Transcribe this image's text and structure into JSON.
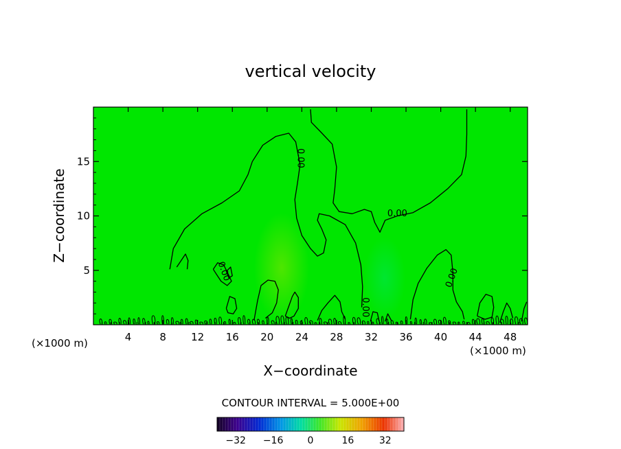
{
  "chart_data": {
    "type": "heatmap",
    "title": "vertical velocity",
    "xlabel": "X−coordinate",
    "ylabel": "Z−coordinate",
    "x_unit_left": "(×1000 m)",
    "x_unit_right": "(×1000 m)",
    "xlim": [
      0,
      50
    ],
    "ylim": [
      0,
      20
    ],
    "xticks": [
      4,
      8,
      12,
      16,
      20,
      24,
      28,
      32,
      36,
      40,
      44,
      48
    ],
    "yticks": [
      5,
      10,
      15
    ],
    "field_color": "#00e600",
    "contour_color": "#000000",
    "contour_labels": [
      {
        "text": "0.00",
        "x": 23.8,
        "y": 15.3,
        "rotate": 90
      },
      {
        "text": "0.00",
        "x": 35.0,
        "y": 10.2,
        "rotate": 0
      },
      {
        "text": "0.00",
        "x": 41.3,
        "y": 4.3,
        "rotate": -70
      },
      {
        "text": "0.00",
        "x": 15.0,
        "y": 4.9,
        "rotate": 70
      },
      {
        "text": "0.00",
        "x": 31.3,
        "y": 1.6,
        "rotate": 90
      }
    ],
    "contours": [
      [
        [
          8.8,
          5.1
        ],
        [
          9.2,
          7.0
        ],
        [
          10.5,
          8.8
        ],
        [
          12.5,
          10.2
        ],
        [
          14.8,
          11.2
        ],
        [
          16.8,
          12.3
        ],
        [
          17.8,
          13.8
        ],
        [
          18.3,
          15.0
        ],
        [
          19.5,
          16.5
        ],
        [
          21.0,
          17.3
        ],
        [
          22.5,
          17.6
        ],
        [
          23.3,
          16.8
        ],
        [
          23.8,
          14.7
        ],
        [
          23.5,
          13.0
        ],
        [
          23.2,
          11.5
        ],
        [
          23.4,
          9.8
        ],
        [
          24.0,
          8.2
        ],
        [
          25.0,
          7.0
        ],
        [
          25.8,
          6.3
        ],
        [
          26.5,
          6.6
        ],
        [
          26.8,
          7.8
        ],
        [
          26.3,
          8.8
        ],
        [
          25.8,
          9.6
        ],
        [
          26.0,
          10.2
        ],
        [
          27.2,
          10.0
        ],
        [
          29.0,
          9.2
        ],
        [
          30.2,
          7.5
        ],
        [
          30.8,
          5.5
        ],
        [
          31.0,
          3.5
        ],
        [
          30.9,
          1.6
        ]
      ],
      [
        [
          25.0,
          19.8
        ],
        [
          25.1,
          18.6
        ],
        [
          26.2,
          17.7
        ],
        [
          27.5,
          16.6
        ],
        [
          28.0,
          14.5
        ],
        [
          27.8,
          12.5
        ],
        [
          27.6,
          11.2
        ],
        [
          28.3,
          10.4
        ],
        [
          29.8,
          10.2
        ],
        [
          31.2,
          10.6
        ],
        [
          32.0,
          10.4
        ],
        [
          32.4,
          9.4
        ],
        [
          33.0,
          8.5
        ],
        [
          33.6,
          9.6
        ],
        [
          35.0,
          10.0
        ],
        [
          36.8,
          10.3
        ],
        [
          38.8,
          11.2
        ],
        [
          40.8,
          12.5
        ],
        [
          42.4,
          13.8
        ],
        [
          42.9,
          15.5
        ],
        [
          43.0,
          17.5
        ],
        [
          43.0,
          19.8
        ]
      ],
      [
        [
          9.6,
          5.3
        ],
        [
          10.1,
          5.9
        ],
        [
          10.6,
          6.5
        ],
        [
          10.9,
          5.9
        ],
        [
          10.8,
          5.1
        ]
      ],
      [
        [
          13.8,
          5.1
        ],
        [
          14.3,
          5.7
        ],
        [
          15.0,
          5.5
        ],
        [
          15.5,
          4.7
        ],
        [
          15.9,
          4.0
        ],
        [
          15.4,
          3.6
        ],
        [
          14.7,
          4.0
        ],
        [
          14.2,
          4.6
        ],
        [
          13.8,
          5.1
        ]
      ],
      [
        [
          15.3,
          4.9
        ],
        [
          15.8,
          5.3
        ],
        [
          16.0,
          4.5
        ],
        [
          15.6,
          4.3
        ],
        [
          15.3,
          4.9
        ]
      ],
      [
        [
          36.5,
          0.5
        ],
        [
          36.8,
          2.3
        ],
        [
          37.4,
          3.8
        ],
        [
          38.4,
          5.2
        ],
        [
          39.6,
          6.4
        ],
        [
          40.6,
          6.9
        ],
        [
          41.2,
          6.4
        ],
        [
          41.4,
          4.8
        ],
        [
          41.4,
          3.2
        ],
        [
          41.8,
          2.1
        ],
        [
          42.5,
          1.2
        ],
        [
          42.7,
          0.5
        ]
      ],
      [
        [
          22.1,
          0.8
        ],
        [
          22.5,
          1.7
        ],
        [
          22.9,
          2.6
        ],
        [
          23.2,
          3.0
        ],
        [
          23.6,
          2.5
        ],
        [
          23.6,
          1.5
        ],
        [
          23.1,
          0.8
        ],
        [
          22.6,
          0.6
        ],
        [
          22.1,
          0.8
        ]
      ],
      [
        [
          44.2,
          0.8
        ],
        [
          44.5,
          2.0
        ],
        [
          45.2,
          2.8
        ],
        [
          45.9,
          2.6
        ],
        [
          46.1,
          1.6
        ],
        [
          45.9,
          0.7
        ],
        [
          45.1,
          0.5
        ],
        [
          44.2,
          0.8
        ]
      ],
      [
        [
          15.3,
          1.5
        ],
        [
          15.7,
          2.6
        ],
        [
          16.3,
          2.4
        ],
        [
          16.5,
          1.5
        ],
        [
          16.1,
          1.0
        ],
        [
          15.5,
          1.1
        ],
        [
          15.3,
          1.5
        ]
      ],
      [
        [
          18.5,
          0.4
        ],
        [
          18.9,
          2.2
        ],
        [
          19.3,
          3.6
        ],
        [
          20.1,
          4.1
        ],
        [
          20.9,
          4.0
        ],
        [
          21.3,
          3.2
        ],
        [
          21.1,
          2.0
        ],
        [
          20.6,
          1.1
        ],
        [
          19.8,
          0.6
        ]
      ],
      [
        [
          25.8,
          0.4
        ],
        [
          26.3,
          1.3
        ],
        [
          27.0,
          2.0
        ],
        [
          27.8,
          2.7
        ],
        [
          28.4,
          2.1
        ],
        [
          28.6,
          1.2
        ],
        [
          29.0,
          0.5
        ]
      ],
      [
        [
          31.9,
          0.3
        ],
        [
          32.2,
          1.2
        ],
        [
          32.7,
          1.1
        ],
        [
          32.9,
          0.3
        ]
      ],
      [
        [
          33.6,
          0.3
        ],
        [
          33.9,
          1.0
        ],
        [
          34.3,
          0.4
        ]
      ],
      [
        [
          46.8,
          0.2
        ],
        [
          47.2,
          1.2
        ],
        [
          47.6,
          2.0
        ],
        [
          48.0,
          1.5
        ],
        [
          48.3,
          0.6
        ]
      ],
      [
        [
          49.3,
          0.3
        ],
        [
          49.6,
          1.5
        ],
        [
          49.9,
          2.1
        ]
      ]
    ],
    "colorbar": {
      "title": "CONTOUR INTERVAL = 5.000E+00",
      "ticks": [
        -32,
        -16,
        0,
        16,
        32
      ],
      "tick_labels": [
        "−32",
        "−16",
        "0",
        "16",
        "32"
      ],
      "range": [
        -40,
        40
      ]
    }
  }
}
